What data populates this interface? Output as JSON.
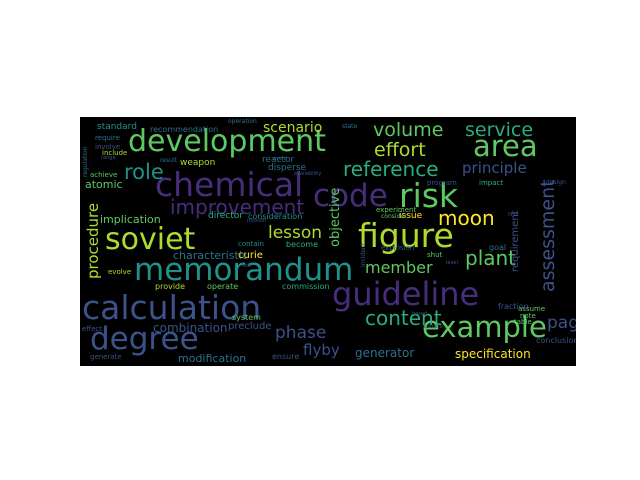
{
  "palette": {
    "purple": "#472d7b",
    "indigo": "#3b528b",
    "steel": "#2c728e",
    "teal": "#21918c",
    "green": "#28ae80",
    "lime": "#5ec962",
    "yellowgreen": "#addc30",
    "yellow": "#fde725"
  },
  "words": [
    {
      "t": "memorandum"
    },
    {
      "t": "guideline"
    },
    {
      "t": "calculation"
    },
    {
      "t": "degree"
    },
    {
      "t": "development"
    },
    {
      "t": "chemical"
    },
    {
      "t": "code"
    },
    {
      "t": "risk"
    },
    {
      "t": "figure"
    },
    {
      "t": "soviet"
    },
    {
      "t": "example"
    },
    {
      "t": "area"
    },
    {
      "t": "improvement"
    },
    {
      "t": "reference"
    },
    {
      "t": "volume"
    },
    {
      "t": "service"
    },
    {
      "t": "effort"
    },
    {
      "t": "role"
    },
    {
      "t": "assessment"
    },
    {
      "t": "content"
    },
    {
      "t": "moon"
    },
    {
      "t": "plant"
    },
    {
      "t": "member"
    },
    {
      "t": "lesson"
    },
    {
      "t": "phase"
    },
    {
      "t": "page"
    },
    {
      "t": "procedure"
    },
    {
      "t": "principle"
    },
    {
      "t": "scenario"
    },
    {
      "t": "flyby"
    },
    {
      "t": "objective"
    },
    {
      "t": "specification"
    },
    {
      "t": "generator"
    },
    {
      "t": "combination"
    },
    {
      "t": "modification"
    },
    {
      "t": "characteristic"
    },
    {
      "t": "implication"
    },
    {
      "t": "atomic"
    },
    {
      "t": "requirement"
    },
    {
      "t": "curie"
    },
    {
      "t": "preclude"
    },
    {
      "t": "issue"
    },
    {
      "t": "weapon"
    },
    {
      "t": "director"
    },
    {
      "t": "standard"
    },
    {
      "t": "recommendation"
    },
    {
      "t": "reactor"
    },
    {
      "t": "disperse"
    },
    {
      "t": "consideration"
    },
    {
      "t": "commission"
    },
    {
      "t": "provide"
    },
    {
      "t": "operate"
    },
    {
      "t": "ensure"
    },
    {
      "t": "system"
    },
    {
      "t": "become"
    },
    {
      "t": "contain"
    },
    {
      "t": "experiment"
    },
    {
      "t": "explosion"
    },
    {
      "t": "fraction"
    },
    {
      "t": "conclusion"
    },
    {
      "t": "goal"
    },
    {
      "t": "shut"
    },
    {
      "t": "include"
    },
    {
      "t": "evolve"
    },
    {
      "t": "achieve"
    },
    {
      "t": "generate"
    },
    {
      "t": "effect"
    },
    {
      "t": "assume"
    },
    {
      "t": "note"
    },
    {
      "t": "table"
    },
    {
      "t": "program"
    },
    {
      "t": "impact"
    },
    {
      "t": "consider"
    },
    {
      "t": "involve"
    },
    {
      "t": "require"
    },
    {
      "t": "regulation"
    },
    {
      "t": "incident"
    },
    {
      "t": "source"
    },
    {
      "t": "design"
    },
    {
      "t": "operation"
    },
    {
      "t": "state"
    },
    {
      "t": "result"
    },
    {
      "t": "event"
    },
    {
      "t": "test"
    },
    {
      "t": "mission"
    },
    {
      "t": "availability"
    },
    {
      "t": "based"
    },
    {
      "t": "limit"
    },
    {
      "t": "range"
    },
    {
      "t": "level"
    }
  ]
}
